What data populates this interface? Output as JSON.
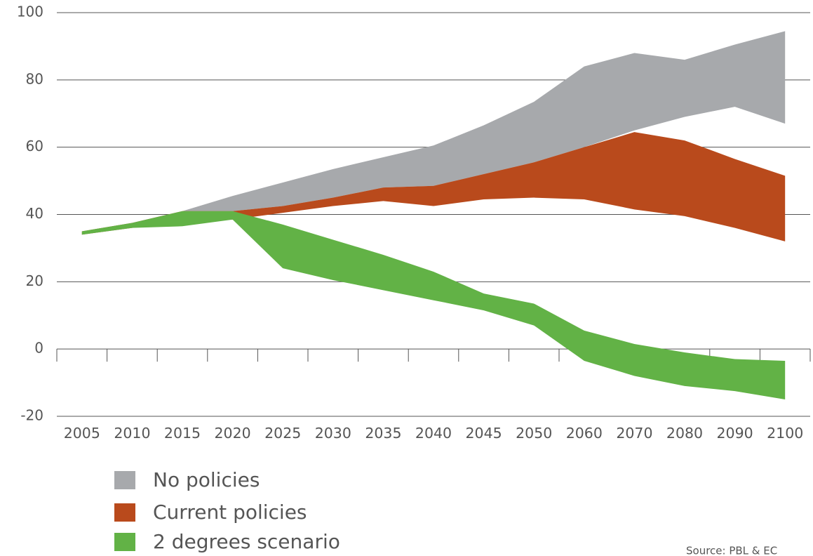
{
  "chart_data": {
    "type": "band",
    "categories": [
      "2005",
      "2010",
      "2015",
      "2020",
      "2025",
      "2030",
      "2035",
      "2040",
      "2045",
      "2050",
      "2060",
      "2070",
      "2080",
      "2090",
      "2100"
    ],
    "series": [
      {
        "name": "No policies",
        "color": "#a7a9ac",
        "values": [
          null,
          null,
          41,
          45.5,
          49.5,
          53.5,
          57,
          60.5,
          66.5,
          73.5,
          84,
          88,
          86,
          90.5,
          94.5
        ],
        "low": [
          null,
          null,
          41,
          41,
          42.5,
          45,
          48,
          48.5,
          52,
          55.5,
          60,
          65,
          69,
          72,
          67
        ]
      },
      {
        "name": "Current policies",
        "color": "#b94a1c",
        "values": [
          35,
          37.5,
          41,
          41,
          42.5,
          45,
          48,
          48.5,
          52,
          55.5,
          60,
          64.5,
          62,
          56.5,
          51.5
        ],
        "low": [
          34,
          36,
          37.5,
          38.5,
          40.5,
          42.5,
          44,
          42.5,
          44.5,
          45,
          44.5,
          41.5,
          39.5,
          36,
          32
        ]
      },
      {
        "name": "2 degrees scenario",
        "color": "#62b246",
        "values": [
          35,
          37.5,
          41,
          41,
          37,
          32.5,
          28,
          23,
          16.5,
          13.5,
          5.5,
          1.5,
          -1,
          -3,
          -3.5
        ],
        "low": [
          34,
          36,
          36.5,
          38.5,
          24,
          20.5,
          17.5,
          14.5,
          11.5,
          7,
          -3.5,
          -8,
          -11,
          -12.5,
          -15
        ]
      }
    ],
    "ylim": [
      -20,
      100
    ],
    "yticks": [
      -20,
      0,
      20,
      40,
      60,
      80,
      100
    ],
    "grid": true,
    "source": "Source: PBL & EC"
  }
}
